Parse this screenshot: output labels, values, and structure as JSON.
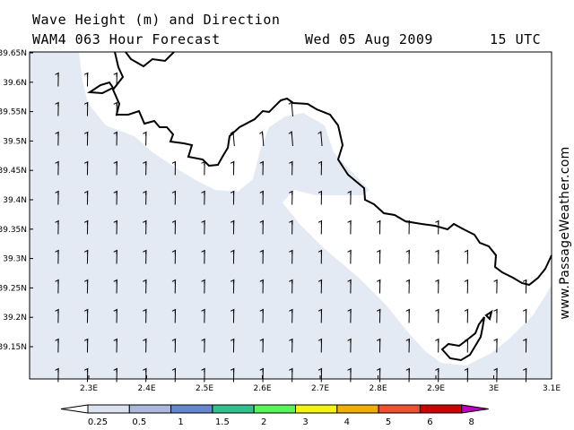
{
  "header": {
    "line1": "Wave Height (m) and Direction",
    "model": "WAM4 063 Hour Forecast",
    "date": "Wed 05 Aug 2009",
    "time": "15 UTC"
  },
  "watermark": "www.PassageWeather.com",
  "map": {
    "lon_range": [
      2.15,
      3.1
    ],
    "lat_range": [
      39.1,
      39.65
    ],
    "lat_ticks": [
      "39.15N",
      "39.2N",
      "39.25N",
      "39.3N",
      "39.35N",
      "39.4N",
      "39.45N",
      "39.5N",
      "39.55N",
      "39.6N",
      "39.65N"
    ],
    "lon_ticks": [
      "2.3E",
      "2.4E",
      "2.5E",
      "2.6E",
      "2.7E",
      "2.8E",
      "2.9E",
      "3E",
      "3.1E"
    ],
    "land_label": "",
    "sea_color": "#e4eaf4",
    "wave_direction": "toward north-west",
    "wave_height_range_m": "0.25–0.5"
  },
  "legend": {
    "labels": [
      "0.25",
      "0.5",
      "1",
      "1.5",
      "2",
      "3",
      "4",
      "5",
      "6",
      "8"
    ],
    "colors": [
      "#ffffff",
      "#dbe3f0",
      "#aab9dc",
      "#6587cf",
      "#33c08e",
      "#5cf45c",
      "#f4f40c",
      "#f0b000",
      "#f05030",
      "#d00000",
      "#c000c0"
    ]
  }
}
